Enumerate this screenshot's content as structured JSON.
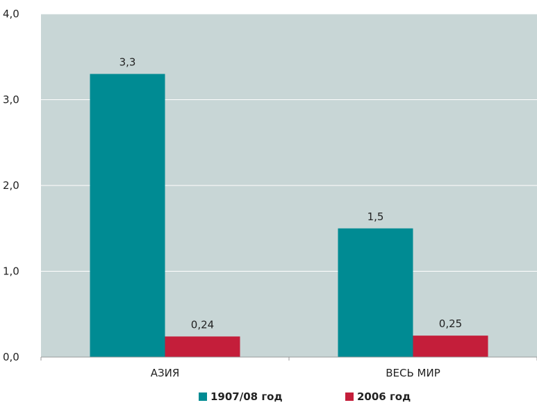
{
  "chart_data": {
    "type": "bar",
    "categories": [
      "АЗИЯ",
      "ВЕСЬ МИР"
    ],
    "series": [
      {
        "name": "1907/08 год",
        "values": [
          3.3,
          1.5
        ],
        "labels": [
          "3,3",
          "1,5"
        ],
        "color": "#008b93"
      },
      {
        "name": "2006 год",
        "values": [
          0.24,
          0.25
        ],
        "labels": [
          "0,24",
          "0,25"
        ],
        "color": "#c41e3a"
      }
    ],
    "ylim": [
      0,
      4
    ],
    "yticks": [
      0,
      1,
      2,
      3,
      4
    ],
    "ytick_labels": [
      "0,0",
      "1,0",
      "2,0",
      "3,0",
      "4,0"
    ],
    "grid": true,
    "plot_background": "#c8d6d6",
    "legend_position": "bottom-center",
    "title": "",
    "xlabel": "",
    "ylabel": ""
  }
}
